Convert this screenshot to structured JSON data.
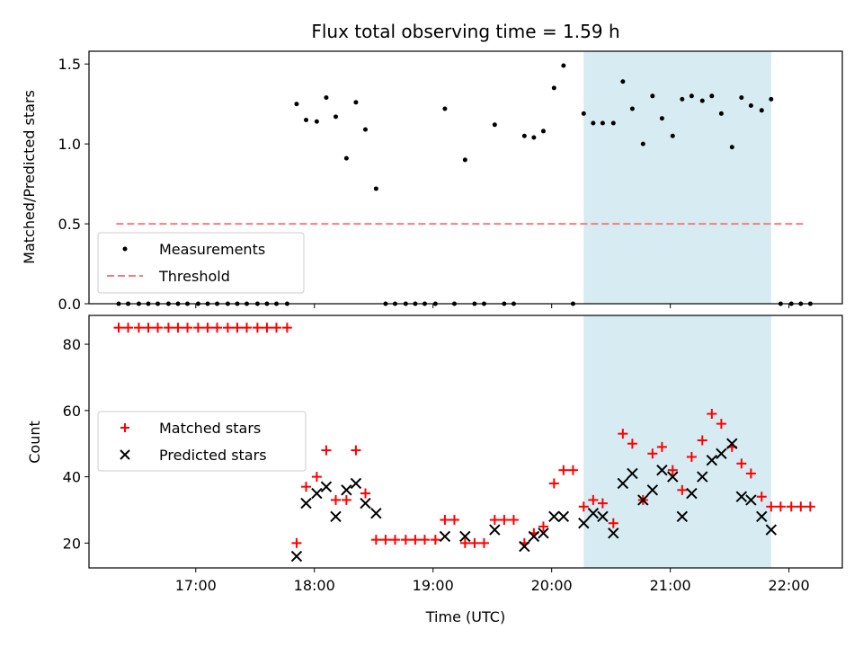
{
  "chart_data": [
    {
      "type": "scatter",
      "title": "Flux total observing time = 1.59 h",
      "ylabel": "Matched/Predicted stars",
      "xlabel": "",
      "xlim": [
        16.1,
        22.45
      ],
      "ylim": [
        0,
        1.58
      ],
      "yticks": [
        0,
        0.5,
        1.0,
        1.5
      ],
      "ytick_labels": [
        "0.0",
        "0.5",
        "1.0",
        "1.5"
      ],
      "xticks": [
        17,
        18,
        19,
        20,
        21,
        22
      ],
      "highlight_span": [
        20.27,
        21.85
      ],
      "legend": {
        "position": "lower-left",
        "entries": [
          "Measurements",
          "Threshold"
        ]
      },
      "threshold": {
        "name": "Threshold",
        "value": 0.5,
        "x_range": [
          16.33,
          22.13
        ],
        "color": "#f08080"
      },
      "series": [
        {
          "name": "Measurements",
          "color": "#000000",
          "points": [
            [
              16.35,
              0
            ],
            [
              16.43,
              0
            ],
            [
              16.52,
              0
            ],
            [
              16.6,
              0
            ],
            [
              16.68,
              0
            ],
            [
              16.77,
              0
            ],
            [
              16.85,
              0
            ],
            [
              16.93,
              0
            ],
            [
              17.02,
              0
            ],
            [
              17.1,
              0
            ],
            [
              17.18,
              0
            ],
            [
              17.27,
              0
            ],
            [
              17.35,
              0
            ],
            [
              17.43,
              0
            ],
            [
              17.52,
              0
            ],
            [
              17.6,
              0
            ],
            [
              17.68,
              0
            ],
            [
              17.77,
              0
            ],
            [
              17.85,
              1.25
            ],
            [
              17.93,
              1.15
            ],
            [
              18.02,
              1.14
            ],
            [
              18.1,
              1.29
            ],
            [
              18.18,
              1.17
            ],
            [
              18.27,
              0.91
            ],
            [
              18.35,
              1.26
            ],
            [
              18.43,
              1.09
            ],
            [
              18.52,
              0.72
            ],
            [
              18.6,
              0
            ],
            [
              18.68,
              0
            ],
            [
              18.77,
              0
            ],
            [
              18.85,
              0
            ],
            [
              18.93,
              0
            ],
            [
              19.02,
              0
            ],
            [
              19.1,
              1.22
            ],
            [
              19.18,
              0
            ],
            [
              19.27,
              0.9
            ],
            [
              19.35,
              0
            ],
            [
              19.43,
              0
            ],
            [
              19.52,
              1.12
            ],
            [
              19.6,
              0
            ],
            [
              19.68,
              0
            ],
            [
              19.77,
              1.05
            ],
            [
              19.85,
              1.04
            ],
            [
              19.93,
              1.08
            ],
            [
              20.02,
              1.35
            ],
            [
              20.1,
              1.49
            ],
            [
              20.18,
              0
            ],
            [
              20.27,
              1.19
            ],
            [
              20.35,
              1.13
            ],
            [
              20.43,
              1.13
            ],
            [
              20.52,
              1.13
            ],
            [
              20.6,
              1.39
            ],
            [
              20.68,
              1.22
            ],
            [
              20.77,
              1.0
            ],
            [
              20.85,
              1.3
            ],
            [
              20.93,
              1.16
            ],
            [
              21.02,
              1.05
            ],
            [
              21.1,
              1.28
            ],
            [
              21.18,
              1.3
            ],
            [
              21.27,
              1.27
            ],
            [
              21.35,
              1.3
            ],
            [
              21.43,
              1.19
            ],
            [
              21.52,
              0.98
            ],
            [
              21.6,
              1.29
            ],
            [
              21.68,
              1.24
            ],
            [
              21.77,
              1.21
            ],
            [
              21.85,
              1.28
            ],
            [
              21.93,
              0
            ],
            [
              22.02,
              0
            ],
            [
              22.1,
              0
            ],
            [
              22.18,
              0
            ]
          ]
        }
      ]
    },
    {
      "type": "scatter",
      "title": "",
      "ylabel": "Count",
      "xlabel": "Time (UTC)",
      "xlim": [
        16.1,
        22.45
      ],
      "ylim": [
        12.5,
        88.7
      ],
      "yticks": [
        20,
        40,
        60,
        80
      ],
      "ytick_labels": [
        "20",
        "40",
        "60",
        "80"
      ],
      "xticks": [
        17,
        18,
        19,
        20,
        21,
        22
      ],
      "xtick_labels": [
        "17:00",
        "18:00",
        "19:00",
        "20:00",
        "21:00",
        "22:00"
      ],
      "highlight_span": [
        20.27,
        21.85
      ],
      "legend": {
        "position": "center-left",
        "entries": [
          "Matched stars",
          "Predicted stars"
        ]
      },
      "series": [
        {
          "name": "Matched stars",
          "marker": "plus",
          "color": "#ff0000",
          "points": [
            [
              16.35,
              85
            ],
            [
              16.43,
              85
            ],
            [
              16.52,
              85
            ],
            [
              16.6,
              85
            ],
            [
              16.68,
              85
            ],
            [
              16.77,
              85
            ],
            [
              16.85,
              85
            ],
            [
              16.93,
              85
            ],
            [
              17.02,
              85
            ],
            [
              17.1,
              85
            ],
            [
              17.18,
              85
            ],
            [
              17.27,
              85
            ],
            [
              17.35,
              85
            ],
            [
              17.43,
              85
            ],
            [
              17.52,
              85
            ],
            [
              17.6,
              85
            ],
            [
              17.68,
              85
            ],
            [
              17.77,
              85
            ],
            [
              17.85,
              20
            ],
            [
              17.93,
              37
            ],
            [
              18.02,
              40
            ],
            [
              18.1,
              48
            ],
            [
              18.18,
              33
            ],
            [
              18.27,
              33
            ],
            [
              18.35,
              48
            ],
            [
              18.43,
              35
            ],
            [
              18.52,
              21
            ],
            [
              18.6,
              21
            ],
            [
              18.68,
              21
            ],
            [
              18.77,
              21
            ],
            [
              18.85,
              21
            ],
            [
              18.93,
              21
            ],
            [
              19.02,
              21
            ],
            [
              19.1,
              27
            ],
            [
              19.18,
              27
            ],
            [
              19.27,
              20
            ],
            [
              19.35,
              20
            ],
            [
              19.43,
              20
            ],
            [
              19.52,
              27
            ],
            [
              19.6,
              27
            ],
            [
              19.68,
              27
            ],
            [
              19.77,
              20
            ],
            [
              19.85,
              23
            ],
            [
              19.93,
              25
            ],
            [
              20.02,
              38
            ],
            [
              20.1,
              42
            ],
            [
              20.18,
              42
            ],
            [
              20.27,
              31
            ],
            [
              20.35,
              33
            ],
            [
              20.43,
              32
            ],
            [
              20.52,
              26
            ],
            [
              20.6,
              53
            ],
            [
              20.68,
              50
            ],
            [
              20.77,
              33
            ],
            [
              20.85,
              47
            ],
            [
              20.93,
              49
            ],
            [
              21.02,
              42
            ],
            [
              21.1,
              36
            ],
            [
              21.18,
              46
            ],
            [
              21.27,
              51
            ],
            [
              21.35,
              59
            ],
            [
              21.43,
              56
            ],
            [
              21.52,
              49
            ],
            [
              21.6,
              44
            ],
            [
              21.68,
              41
            ],
            [
              21.77,
              34
            ],
            [
              21.85,
              31
            ],
            [
              21.93,
              31
            ],
            [
              22.02,
              31
            ],
            [
              22.1,
              31
            ],
            [
              22.18,
              31
            ]
          ]
        },
        {
          "name": "Predicted stars",
          "marker": "x",
          "color": "#000000",
          "points": [
            [
              17.85,
              16
            ],
            [
              17.93,
              32
            ],
            [
              18.02,
              35
            ],
            [
              18.1,
              37
            ],
            [
              18.18,
              28
            ],
            [
              18.27,
              36
            ],
            [
              18.35,
              38
            ],
            [
              18.43,
              32
            ],
            [
              18.52,
              29
            ],
            [
              19.1,
              22
            ],
            [
              19.27,
              22
            ],
            [
              19.52,
              24
            ],
            [
              19.77,
              19
            ],
            [
              19.85,
              22
            ],
            [
              19.93,
              23
            ],
            [
              20.02,
              28
            ],
            [
              20.1,
              28
            ],
            [
              20.27,
              26
            ],
            [
              20.35,
              29
            ],
            [
              20.43,
              28
            ],
            [
              20.52,
              23
            ],
            [
              20.6,
              38
            ],
            [
              20.68,
              41
            ],
            [
              20.77,
              33
            ],
            [
              20.85,
              36
            ],
            [
              20.93,
              42
            ],
            [
              21.02,
              40
            ],
            [
              21.1,
              28
            ],
            [
              21.18,
              35
            ],
            [
              21.27,
              40
            ],
            [
              21.35,
              45
            ],
            [
              21.43,
              47
            ],
            [
              21.52,
              50
            ],
            [
              21.6,
              34
            ],
            [
              21.68,
              33
            ],
            [
              21.77,
              28
            ],
            [
              21.85,
              24
            ]
          ]
        }
      ]
    }
  ]
}
